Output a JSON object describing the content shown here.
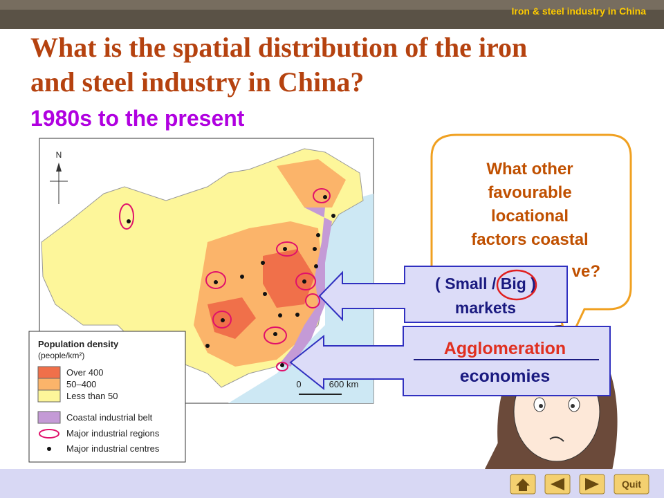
{
  "header": {
    "tag": "Iron & steel industry in China"
  },
  "title": {
    "line1": "What is the spatial distribution of the iron",
    "line2": "and steel industry in China?"
  },
  "subtitle": "1980s to the present",
  "map": {
    "north": "N",
    "scale_start": "0",
    "scale_end": "600 km",
    "legend": {
      "title": "Population density",
      "unit": "(people/km²)",
      "items": [
        "Over 400",
        "50–400",
        "Less than 50",
        "Coastal industrial belt",
        "Major industrial regions",
        "Major industrial centres"
      ]
    }
  },
  "bubble": {
    "lines": [
      "What other",
      "favourable",
      "locational",
      "factors coastal",
      "ve?"
    ]
  },
  "answer1": {
    "line1": "( Small / Big )",
    "line2": "markets"
  },
  "answer2": {
    "line1": "Agglomeration",
    "line2": "economies"
  },
  "nav": {
    "quit": "Quit"
  }
}
